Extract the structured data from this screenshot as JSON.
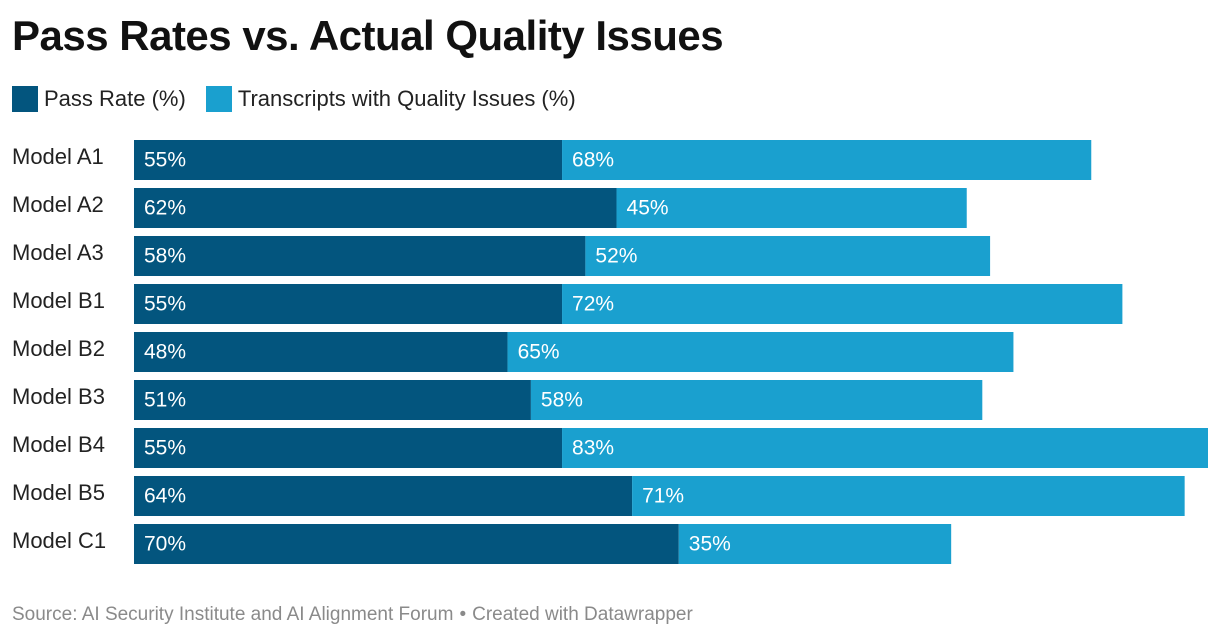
{
  "chart_data": {
    "type": "bar",
    "stacked": true,
    "orientation": "horizontal",
    "title": "Pass Rates vs. Actual Quality Issues",
    "categories": [
      "Model A1",
      "Model A2",
      "Model A3",
      "Model B1",
      "Model B2",
      "Model B3",
      "Model B4",
      "Model B5",
      "Model C1"
    ],
    "series": [
      {
        "name": "Pass Rate (%)",
        "color": "#03557e",
        "values": [
          55,
          62,
          58,
          55,
          48,
          51,
          55,
          64,
          70
        ]
      },
      {
        "name": "Transcripts with Quality Issues (%)",
        "color": "#1aa0cf",
        "values": [
          68,
          45,
          52,
          72,
          65,
          58,
          83,
          71,
          35
        ]
      }
    ],
    "value_suffix": "%",
    "xlim": [
      0,
      138
    ],
    "legend_position": "top-left",
    "grid": false
  },
  "footer": {
    "source": "Source: AI Security Institute and AI Alignment Forum",
    "separator": "•",
    "credit": "Created with Datawrapper"
  }
}
